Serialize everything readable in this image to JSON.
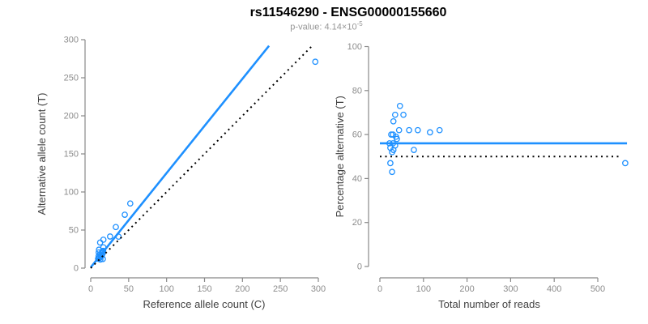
{
  "header": {
    "title": "rs11546290 - ENSG00000155660",
    "subtitle_prefix": "p-value: 4.14×10",
    "subtitle_exponent": "-5"
  },
  "colors": {
    "accent_blue": "#1E90FF",
    "identity_line": "#000000",
    "axis": "#888888",
    "tick_label": "#8c8c8c",
    "axis_title": "#404040",
    "title": "#000000",
    "subtitle": "#969696"
  },
  "chart_data": [
    {
      "type": "scatter",
      "panel": "left",
      "xlabel": "Reference allele count (C)",
      "ylabel": "Alternative allele count (T)",
      "xlim": [
        0,
        300
      ],
      "ylim": [
        0,
        300
      ],
      "xticks": [
        0,
        50,
        100,
        150,
        200,
        250,
        300
      ],
      "yticks": [
        0,
        50,
        100,
        150,
        200,
        250,
        300
      ],
      "grid": false,
      "legend": "none",
      "marker": "open-circle",
      "points": [
        [
          9.7,
          12.3
        ],
        [
          11,
          13
        ],
        [
          12.7,
          11.3
        ],
        [
          10.4,
          15.6
        ],
        [
          13.4,
          14.6
        ],
        [
          16,
          12
        ],
        [
          12,
          18
        ],
        [
          13.2,
          16.8
        ],
        [
          10.5,
          20.5
        ],
        [
          14.6,
          16.4
        ],
        [
          10.9,
          24.2
        ],
        [
          15.8,
          19.3
        ],
        [
          15.2,
          21.8
        ],
        [
          16.4,
          22.6
        ],
        [
          16.7,
          27.3
        ],
        [
          12.4,
          33.6
        ],
        [
          16.7,
          37.3
        ],
        [
          25.5,
          41.5
        ],
        [
          36.7,
          41.3
        ],
        [
          33.1,
          53.9
        ],
        [
          44.9,
          70.1
        ],
        [
          52.1,
          84.9
        ],
        [
          296,
          271
        ]
      ],
      "lines": [
        {
          "name": "regression",
          "style": "solid",
          "color_key": "accent_blue",
          "from": [
            0,
            1
          ],
          "to": [
            235,
            292
          ]
        },
        {
          "name": "identity",
          "style": "dotted",
          "color_key": "identity_line",
          "from": [
            0,
            0
          ],
          "to": [
            293,
            293
          ]
        }
      ]
    },
    {
      "type": "scatter",
      "panel": "right",
      "xlabel": "Total number of reads",
      "ylabel": "Percentage alternative (T)",
      "xlim": [
        0,
        500
      ],
      "ylim": [
        0,
        100
      ],
      "xticks": [
        0,
        100,
        200,
        300,
        400,
        500
      ],
      "yticks": [
        0,
        20,
        40,
        60,
        80,
        100
      ],
      "grid": false,
      "legend": "none",
      "marker": "open-circle",
      "points": [
        [
          22,
          56
        ],
        [
          24,
          54
        ],
        [
          24,
          47
        ],
        [
          26,
          60
        ],
        [
          28,
          52
        ],
        [
          28,
          43
        ],
        [
          30,
          60
        ],
        [
          30,
          56
        ],
        [
          31,
          66
        ],
        [
          31,
          53
        ],
        [
          35,
          69
        ],
        [
          35,
          55
        ],
        [
          37,
          59
        ],
        [
          39,
          58
        ],
        [
          44,
          62
        ],
        [
          46,
          73
        ],
        [
          54,
          69
        ],
        [
          67,
          62
        ],
        [
          78,
          53
        ],
        [
          87,
          62
        ],
        [
          115,
          61
        ],
        [
          137,
          62
        ],
        [
          563,
          47
        ]
      ],
      "lines": [
        {
          "name": "mean-percentage",
          "style": "solid",
          "color_key": "accent_blue",
          "from": [
            0,
            56
          ],
          "to": [
            567,
            56
          ]
        },
        {
          "name": "fifty-percent",
          "style": "dotted",
          "color_key": "identity_line",
          "from": [
            0,
            50
          ],
          "to": [
            550,
            50
          ]
        }
      ]
    }
  ]
}
